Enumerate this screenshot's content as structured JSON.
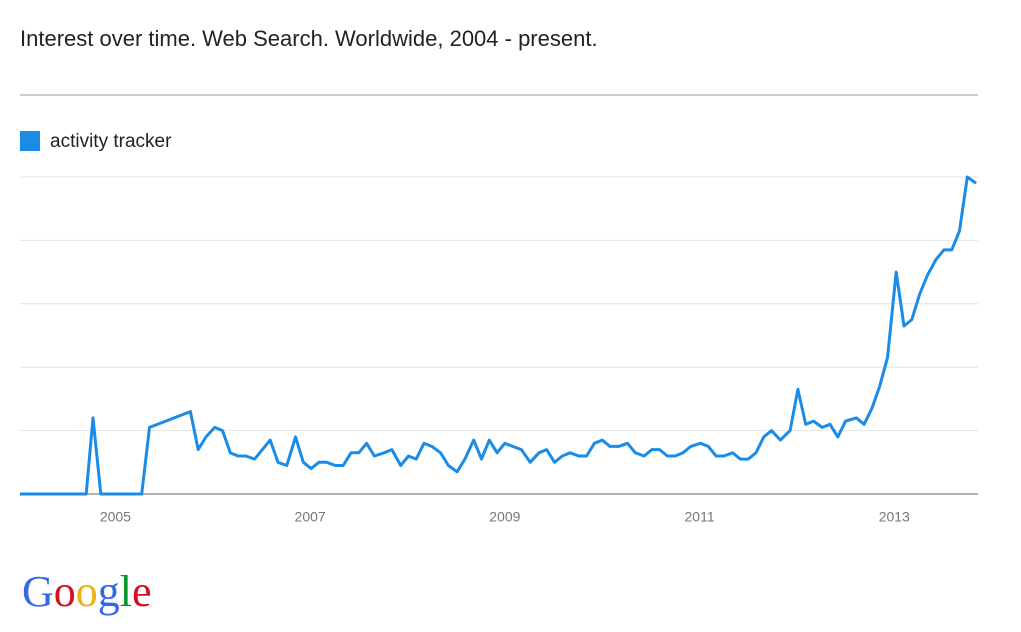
{
  "chart_data": {
    "type": "line",
    "title": "Interest over time. Web Search. Worldwide, 2004 - present.",
    "logo": "Google",
    "series": [
      {
        "name": "activity tracker",
        "color": "#1a8ce8",
        "x": [
          2004.02,
          2004.7,
          2004.77,
          2004.85,
          2005.27,
          2005.35,
          2005.77,
          2005.85,
          2005.93,
          2006.02,
          2006.1,
          2006.18,
          2006.26,
          2006.34,
          2006.43,
          2006.51,
          2006.59,
          2006.67,
          2006.76,
          2006.85,
          2006.93,
          2007.01,
          2007.09,
          2007.17,
          2007.26,
          2007.34,
          2007.42,
          2007.5,
          2007.58,
          2007.66,
          2007.76,
          2007.84,
          2007.93,
          2008.01,
          2008.09,
          2008.17,
          2008.25,
          2008.34,
          2008.42,
          2008.51,
          2008.59,
          2008.68,
          2008.76,
          2008.84,
          2008.92,
          2009.0,
          2009.08,
          2009.17,
          2009.26,
          2009.35,
          2009.43,
          2009.51,
          2009.59,
          2009.67,
          2009.76,
          2009.84,
          2009.92,
          2010.0,
          2010.08,
          2010.17,
          2010.26,
          2010.34,
          2010.43,
          2010.51,
          2010.59,
          2010.67,
          2010.75,
          2010.83,
          2010.91,
          2011.01,
          2011.09,
          2011.17,
          2011.25,
          2011.34,
          2011.42,
          2011.5,
          2011.58,
          2011.66,
          2011.74,
          2011.83,
          2011.93,
          2012.01,
          2012.09,
          2012.17,
          2012.26,
          2012.34,
          2012.42,
          2012.5,
          2012.61,
          2012.69,
          2012.77,
          2012.85,
          2012.93,
          2013.02,
          2013.1,
          2013.18,
          2013.26,
          2013.34,
          2013.43,
          2013.51,
          2013.59,
          2013.67,
          2013.75,
          2013.84
        ],
        "values": [
          0,
          0,
          24,
          0,
          0,
          21,
          26,
          14,
          18,
          21,
          20,
          13,
          12,
          12,
          11,
          14,
          17,
          10,
          9,
          18,
          10,
          8,
          10,
          10,
          9,
          9,
          13,
          13,
          16,
          12,
          13,
          14,
          9,
          12,
          11,
          16,
          15,
          13,
          9,
          7,
          11,
          17,
          11,
          17,
          13,
          16,
          15,
          14,
          10,
          13,
          14,
          10,
          12,
          13,
          12,
          12,
          16,
          17,
          15,
          15,
          16,
          13,
          12,
          14,
          14,
          12,
          12,
          13,
          15,
          16,
          15,
          12,
          12,
          13,
          11,
          11,
          13,
          18,
          20,
          17,
          20,
          33,
          22,
          23,
          21,
          22,
          18,
          23,
          24,
          22,
          27,
          34,
          43,
          70,
          53,
          55,
          63,
          69,
          74,
          77,
          77,
          83,
          100,
          98
        ]
      }
    ],
    "xlim": [
      2004.02,
      2013.86
    ],
    "xticks": [
      2005,
      2007,
      2009,
      2011,
      2013
    ],
    "ylim": [
      0,
      100
    ],
    "yticks": [
      0,
      20,
      40,
      60,
      80,
      100
    ],
    "grid": true
  }
}
